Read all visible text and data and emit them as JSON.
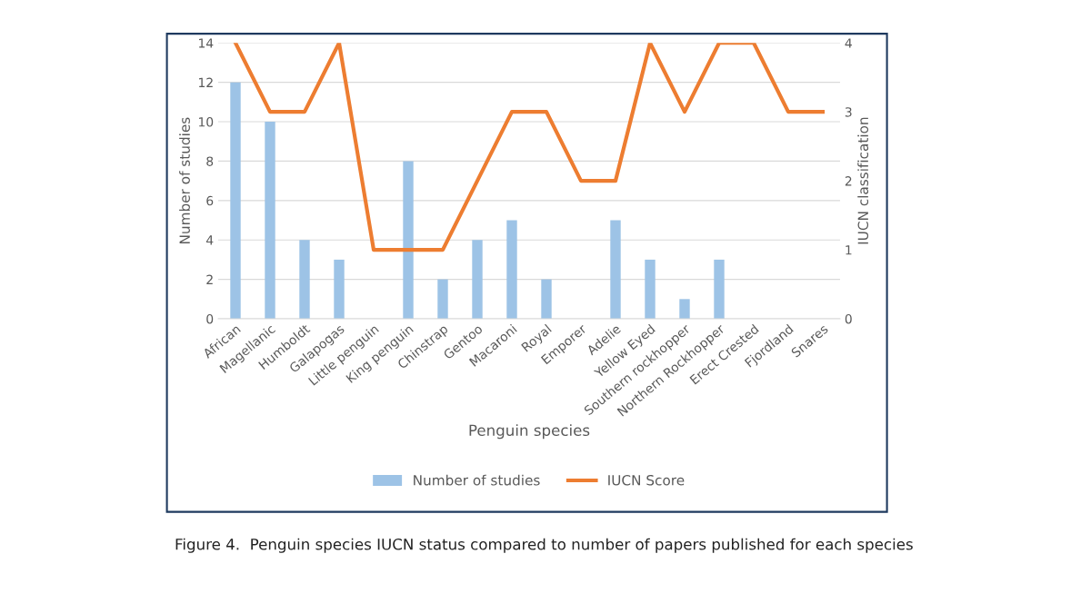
{
  "chart_data": {
    "type": "bar",
    "categories": [
      "African",
      "Magellanic",
      "Humboldt",
      "Galapogas",
      "Little penguin",
      "King penguin",
      "Chinstrap",
      "Gentoo",
      "Macaroni",
      "Royal",
      "Emporer",
      "Adelie",
      "Yellow Eyed",
      "Southern rockhopper",
      "Northern Rockhopper",
      "Erect Crested",
      "Fjordland",
      "Snares"
    ],
    "series": [
      {
        "name": "Number of studies",
        "color": "#9dc3e6",
        "values": [
          12,
          10,
          4,
          3,
          0,
          8,
          2,
          4,
          5,
          2,
          0,
          5,
          3,
          1,
          3,
          0,
          0,
          0
        ]
      },
      {
        "name": "IUCN Score",
        "type": "line",
        "axis": "y2",
        "color": "#ed7d31",
        "values": [
          4,
          3,
          3,
          4,
          1,
          1,
          1,
          2,
          3,
          3,
          2,
          2,
          4,
          3,
          4,
          4,
          3,
          3
        ]
      }
    ],
    "xlabel": "Penguin species",
    "ylabel": "Number of studies",
    "y2label": "IUCN classification",
    "ylim": [
      0,
      14
    ],
    "yticks": [
      0,
      2,
      4,
      6,
      8,
      10,
      12,
      14
    ],
    "y2lim": [
      0,
      4
    ],
    "y2ticks": [
      0,
      1,
      2,
      3,
      4
    ],
    "grid": "y",
    "legend": "bottom",
    "marker": "none",
    "line_style": "solid",
    "annotations": [
      "Figure 4.  Penguin species IUCN status compared to number of papers published for each species"
    ]
  }
}
